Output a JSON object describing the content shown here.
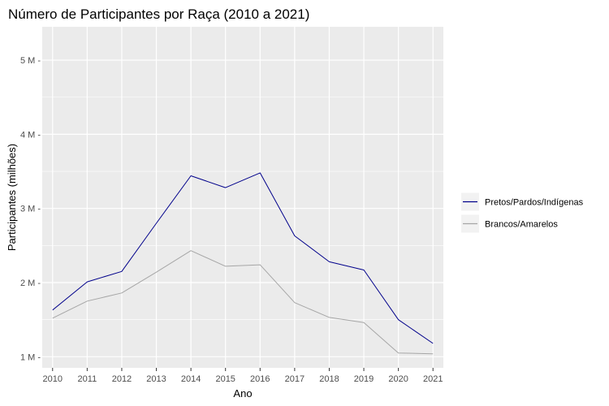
{
  "chart_data": {
    "type": "line",
    "title": "Número de Participantes por Raça (2010 a 2021)",
    "xlabel": "Ano",
    "ylabel": "Participantes (milhões)",
    "x": [
      2010,
      2011,
      2012,
      2013,
      2014,
      2015,
      2016,
      2017,
      2018,
      2019,
      2020,
      2021
    ],
    "x_tick_labels": [
      "2010",
      "2011",
      "2012",
      "2013",
      "2014",
      "2015",
      "2016",
      "2017",
      "2018",
      "2019",
      "2020",
      "2021"
    ],
    "y_ticks": [
      1,
      2,
      3,
      4,
      5
    ],
    "y_tick_labels": [
      "1 M -",
      "2 M -",
      "3 M -",
      "4 M -",
      "5 M -"
    ],
    "ylim": [
      0.85,
      5.45
    ],
    "xlim": [
      2009.7,
      2021.3
    ],
    "grid": true,
    "legend_position": "right",
    "series": [
      {
        "name": "Pretos/Pardos/Indígenas",
        "color": "#00008B",
        "values": [
          1.63,
          2.01,
          2.15,
          2.8,
          3.44,
          3.28,
          3.48,
          2.63,
          2.28,
          2.17,
          1.5,
          1.18
        ]
      },
      {
        "name": "Brancos/Amarelos",
        "color": "#A6A6A6",
        "values": [
          1.52,
          1.75,
          1.86,
          2.14,
          2.43,
          2.22,
          2.24,
          1.73,
          1.53,
          1.46,
          1.05,
          1.04
        ]
      }
    ]
  },
  "colors": {
    "panel_background": "#EBEBEB",
    "legend_background": "#F2F2F2",
    "grid_major": "#FFFFFF"
  }
}
